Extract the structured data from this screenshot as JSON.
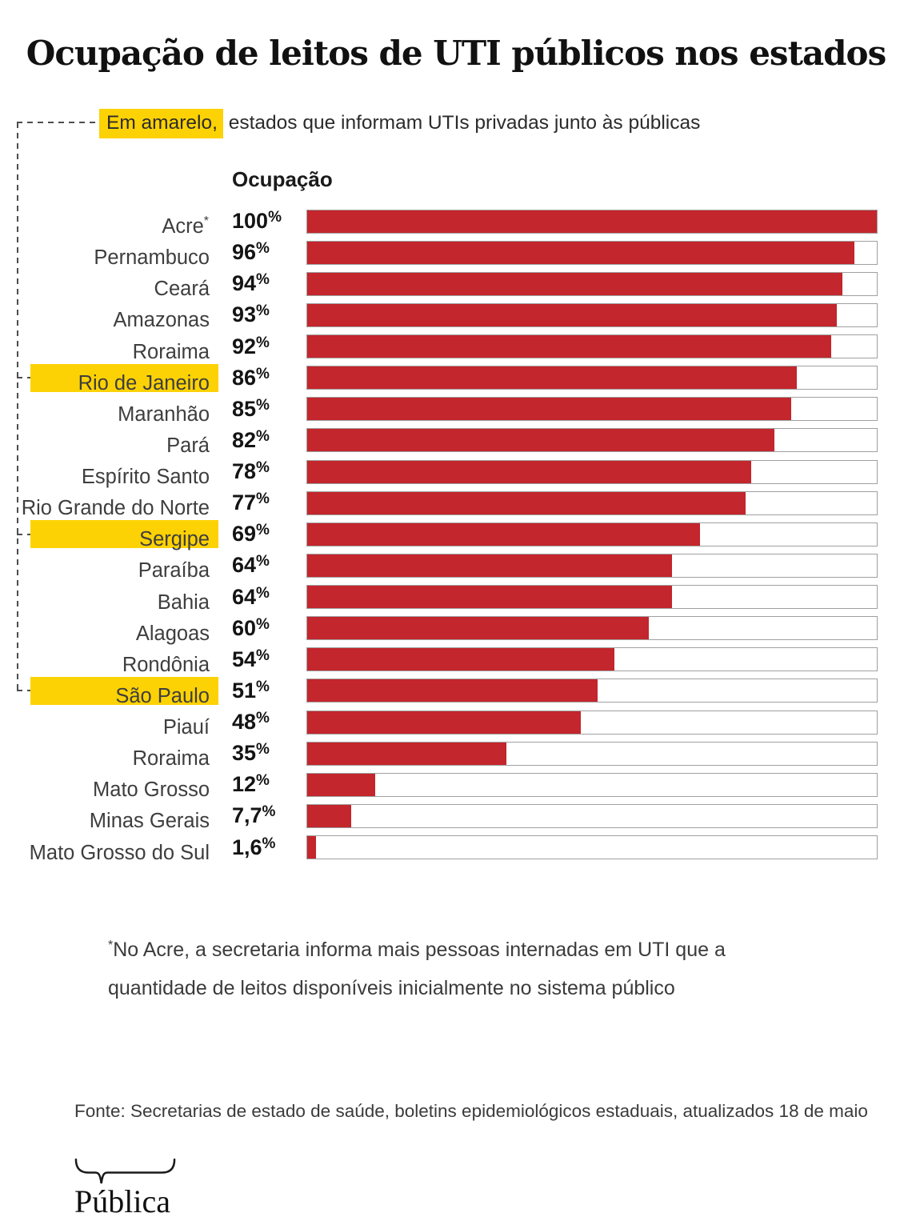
{
  "title": "Ocupação de leitos de UTI públicos nos estados",
  "legend": {
    "highlighted_text": "Em amarelo,",
    "rest_text": " estados que informam UTIs privadas junto às públicas"
  },
  "column_header": "Ocupação",
  "colors": {
    "bar": "#C3262C",
    "highlight": "#FDD204",
    "track_border": "#A0A0A0",
    "dash": "#4D4D4D"
  },
  "chart_data": {
    "type": "bar",
    "orientation": "horizontal",
    "title": "Ocupação de leitos de UTI públicos nos estados",
    "value_axis_label": "Ocupação",
    "unit": "%",
    "xlim": [
      0,
      100
    ],
    "grid": false,
    "highlight_meaning": "estados que informam UTIs privadas junto às públicas",
    "rows": [
      {
        "label": "Acre",
        "marker": "*",
        "value": 100,
        "display": "100",
        "highlighted": false
      },
      {
        "label": "Pernambuco",
        "marker": "",
        "value": 96,
        "display": "96",
        "highlighted": false
      },
      {
        "label": "Ceará",
        "marker": "",
        "value": 94,
        "display": "94",
        "highlighted": false
      },
      {
        "label": "Amazonas",
        "marker": "",
        "value": 93,
        "display": "93",
        "highlighted": false
      },
      {
        "label": "Roraima",
        "marker": "",
        "value": 92,
        "display": "92",
        "highlighted": false
      },
      {
        "label": "Rio de Janeiro",
        "marker": "",
        "value": 86,
        "display": "86",
        "highlighted": true
      },
      {
        "label": "Maranhão",
        "marker": "",
        "value": 85,
        "display": "85",
        "highlighted": false
      },
      {
        "label": "Pará",
        "marker": "",
        "value": 82,
        "display": "82",
        "highlighted": false
      },
      {
        "label": "Espírito Santo",
        "marker": "",
        "value": 78,
        "display": "78",
        "highlighted": false
      },
      {
        "label": "Rio Grande do Norte",
        "marker": "",
        "value": 77,
        "display": "77",
        "highlighted": false
      },
      {
        "label": "Sergipe",
        "marker": "",
        "value": 69,
        "display": "69",
        "highlighted": true
      },
      {
        "label": "Paraíba",
        "marker": "",
        "value": 64,
        "display": "64",
        "highlighted": false
      },
      {
        "label": "Bahia",
        "marker": "",
        "value": 64,
        "display": "64",
        "highlighted": false
      },
      {
        "label": "Alagoas",
        "marker": "",
        "value": 60,
        "display": "60",
        "highlighted": false
      },
      {
        "label": "Rondônia",
        "marker": "",
        "value": 54,
        "display": "54",
        "highlighted": false
      },
      {
        "label": "São Paulo",
        "marker": "",
        "value": 51,
        "display": "51",
        "highlighted": true
      },
      {
        "label": "Piauí",
        "marker": "",
        "value": 48,
        "display": "48",
        "highlighted": false
      },
      {
        "label": "Roraima",
        "marker": "",
        "value": 35,
        "display": "35",
        "highlighted": false
      },
      {
        "label": "Mato Grosso",
        "marker": "",
        "value": 12,
        "display": "12",
        "highlighted": false
      },
      {
        "label": "Minas Gerais",
        "marker": "",
        "value": 7.7,
        "display": "7,7",
        "highlighted": false
      },
      {
        "label": "Mato Grosso do Sul",
        "marker": "",
        "value": 1.6,
        "display": "1,6",
        "highlighted": false
      }
    ]
  },
  "footnote": {
    "star": "*",
    "line1": "No Acre, a secretaria informa mais pessoas internadas em UTI que a",
    "line2": "quantidade de leitos disponíveis inicialmente no sistema público"
  },
  "source": "Fonte: Secretarias de estado de saúde, boletins epidemiológicos estaduais, atualizados 18 de maio",
  "logo": {
    "text": "Pública"
  }
}
